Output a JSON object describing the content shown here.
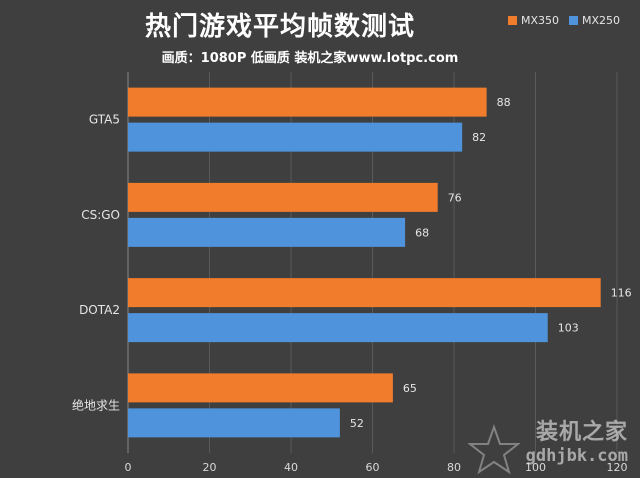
{
  "header": {
    "title": "热门游戏平均帧数测试",
    "subtitle": "画质：1080P 低画质 装机之家www.lotpc.com"
  },
  "watermark": {
    "brand": "装机之家",
    "site": "gdhjbk.com"
  },
  "chart_data": {
    "type": "bar",
    "orientation": "horizontal",
    "title": "热门游戏平均帧数测试",
    "subtitle": "画质：1080P 低画质 装机之家www.lotpc.com",
    "categories": [
      "GTA5",
      "CS:GO",
      "DOTA2",
      "绝地求生"
    ],
    "series": [
      {
        "name": "MX350",
        "values": [
          88,
          76,
          116,
          65
        ],
        "color": "#f07c2c"
      },
      {
        "name": "MX250",
        "values": [
          82,
          68,
          103,
          52
        ],
        "color": "#4e93dc"
      }
    ],
    "xlim": [
      0,
      120
    ],
    "xticks": [
      0,
      20,
      40,
      60,
      80,
      100,
      120
    ],
    "grid": true,
    "legend_position": "top-right",
    "data_labels": true
  }
}
